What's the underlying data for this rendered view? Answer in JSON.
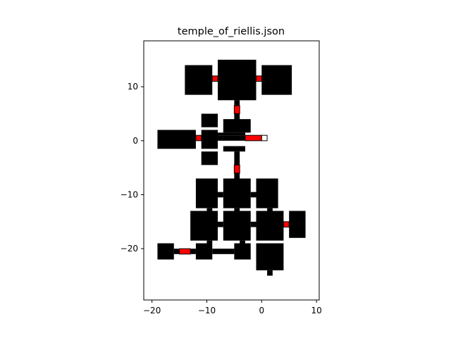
{
  "chart_data": {
    "type": "map",
    "title": "temple_of_riellis.json",
    "xlabel": "",
    "ylabel": "",
    "xlim": [
      -21.5,
      10.5
    ],
    "ylim": [
      -29.5,
      18.5
    ],
    "xticks": [
      -20,
      -10,
      0,
      10
    ],
    "yticks": [
      -20,
      -10,
      0,
      10
    ],
    "xtick_labels": [
      "−20",
      "−10",
      "0",
      "10"
    ],
    "ytick_labels": [
      "−20",
      "−10",
      "0",
      "10"
    ],
    "grid": false,
    "colors": {
      "wall": "#000000",
      "door": "#ff0000",
      "marker": "#ffffff",
      "axes": "#000000"
    },
    "rooms": [
      {
        "name": "room-northwest",
        "x0": -14,
        "x1": -9,
        "y0": 8.5,
        "y1": 14
      },
      {
        "name": "room-north-central",
        "x0": -8,
        "x1": -1,
        "y0": 7.5,
        "y1": 15
      },
      {
        "name": "room-northeast",
        "x0": 0,
        "x1": 5.5,
        "y0": 8.5,
        "y1": 14
      },
      {
        "name": "corridor-north",
        "x0": -5,
        "x1": -4,
        "y0": 3.5,
        "y1": 7.5
      },
      {
        "name": "room-upper-left",
        "x0": -11,
        "x1": -8,
        "y0": 2.5,
        "y1": 5
      },
      {
        "name": "room-upper-middle",
        "x0": -7,
        "x1": -2,
        "y0": 1.5,
        "y1": 4
      },
      {
        "name": "room-west",
        "x0": -19,
        "x1": -12,
        "y0": -1.5,
        "y1": 2
      },
      {
        "name": "corridor-west",
        "x0": -12,
        "x1": -11,
        "y0": 0,
        "y1": 1
      },
      {
        "name": "room-hub",
        "x0": -11,
        "x1": -8,
        "y0": -1.5,
        "y1": 2
      },
      {
        "name": "corridor-east",
        "x0": -8,
        "x1": -3,
        "y0": 0,
        "y1": 1
      },
      {
        "name": "room-center-bar",
        "x0": -8,
        "x1": -3,
        "y0": 1,
        "y1": 1.5
      },
      {
        "name": "room-lower-left",
        "x0": -11,
        "x1": -8,
        "y0": -4.5,
        "y1": -2
      },
      {
        "name": "room-lower-middle",
        "x0": -7,
        "x1": -3,
        "y0": -2,
        "y1": -1
      },
      {
        "name": "corridor-south",
        "x0": -5,
        "x1": -4,
        "y0": -7,
        "y1": -2
      },
      {
        "name": "room-mid-left",
        "x0": -12,
        "x1": -8,
        "y0": -12.5,
        "y1": -7
      },
      {
        "name": "room-mid-center",
        "x0": -7,
        "x1": -2,
        "y0": -12.5,
        "y1": -7
      },
      {
        "name": "room-mid-right",
        "x0": -1,
        "x1": 3,
        "y0": -12.5,
        "y1": -7
      },
      {
        "name": "link-mid-a",
        "x0": -8,
        "x1": -7,
        "y0": -10.5,
        "y1": -9.5
      },
      {
        "name": "link-mid-b",
        "x0": -2,
        "x1": -1,
        "y0": -10.5,
        "y1": -9.5
      },
      {
        "name": "link-vert-a",
        "x0": -10,
        "x1": -9,
        "y0": -13.5,
        "y1": -12.5
      },
      {
        "name": "link-vert-b",
        "x0": -5,
        "x1": -4,
        "y0": -13.5,
        "y1": -12.5
      },
      {
        "name": "link-vert-c",
        "x0": 1,
        "x1": 2,
        "y0": -13.5,
        "y1": -12.5
      },
      {
        "name": "room-low-left",
        "x0": -13,
        "x1": -8,
        "y0": -18.5,
        "y1": -13
      },
      {
        "name": "room-low-center",
        "x0": -7,
        "x1": -2,
        "y0": -18.5,
        "y1": -13
      },
      {
        "name": "room-low-right",
        "x0": -1,
        "x1": 4,
        "y0": -18.5,
        "y1": -13
      },
      {
        "name": "link-low-a",
        "x0": -8,
        "x1": -7,
        "y0": -16,
        "y1": -15
      },
      {
        "name": "link-low-b",
        "x0": -2,
        "x1": -1,
        "y0": -16,
        "y1": -15
      },
      {
        "name": "room-far-east",
        "x0": 5,
        "x1": 8,
        "y0": -18,
        "y1": -13
      },
      {
        "name": "link-low-c",
        "x0": 4,
        "x1": 5,
        "y0": -16,
        "y1": -15
      },
      {
        "name": "room-southwest",
        "x0": -19,
        "x1": -16,
        "y0": -22,
        "y1": -19
      },
      {
        "name": "corridor-southwest",
        "x0": -16,
        "x1": -12,
        "y0": -21,
        "y1": -20
      },
      {
        "name": "room-south-left",
        "x0": -12,
        "x1": -9,
        "y0": -22,
        "y1": -19
      },
      {
        "name": "corridor-south-bar",
        "x0": -9,
        "x1": -5,
        "y0": -21,
        "y1": -20
      },
      {
        "name": "room-south-center",
        "x0": -5,
        "x1": -2,
        "y0": -22,
        "y1": -19
      },
      {
        "name": "link-south-a",
        "x0": -10,
        "x1": -9,
        "y0": -19,
        "y1": -18.5
      },
      {
        "name": "link-south-b",
        "x0": -4,
        "x1": -3,
        "y0": -19,
        "y1": -18.5
      },
      {
        "name": "room-south-east",
        "x0": -1,
        "x1": 4,
        "y0": -24,
        "y1": -19
      },
      {
        "name": "room-south-stub",
        "x0": 1,
        "x1": 2,
        "y0": -25,
        "y1": -24
      }
    ],
    "doors": [
      {
        "name": "door-north-west",
        "x0": -9,
        "x1": -8,
        "y0": 11,
        "y1": 12
      },
      {
        "name": "door-north-east",
        "x0": -1,
        "x1": 0,
        "y0": 11,
        "y1": 12
      },
      {
        "name": "door-north-corr",
        "x0": -5,
        "x1": -4,
        "y0": 5,
        "y1": 6.5
      },
      {
        "name": "door-west",
        "x0": -12,
        "x1": -11,
        "y0": 0,
        "y1": 1
      },
      {
        "name": "door-east",
        "x0": -3,
        "x1": 0,
        "y0": 0,
        "y1": 1
      },
      {
        "name": "door-south-corr",
        "x0": -5,
        "x1": -4,
        "y0": -6,
        "y1": -4.5
      },
      {
        "name": "door-far-east",
        "x0": 4,
        "x1": 5,
        "y0": -16,
        "y1": -15
      },
      {
        "name": "door-southwest",
        "x0": -15,
        "x1": -13,
        "y0": -21,
        "y1": -20
      }
    ],
    "markers": [
      {
        "name": "marker-east-corridor",
        "x0": 0,
        "x1": 1,
        "y0": 0,
        "y1": 1
      }
    ]
  }
}
